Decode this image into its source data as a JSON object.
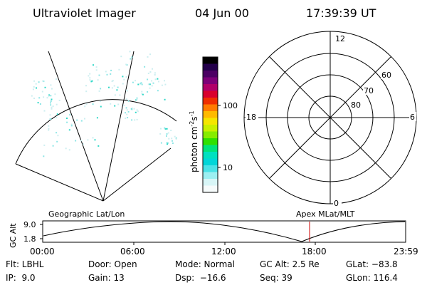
{
  "header": {
    "title": "Ultraviolet Imager",
    "date": "04 Jun 00",
    "time": "17:39:39 UT"
  },
  "colorbar": {
    "label": "photon cm",
    "label_sup1": "-2",
    "label_mid": "s",
    "label_sup2": "-1",
    "ticks": [
      "100",
      "10"
    ],
    "colors": [
      "#000000",
      "#23004a",
      "#4b0063",
      "#7d0078",
      "#b10069",
      "#d9002e",
      "#ef2f00",
      "#ff7b00",
      "#ffba00",
      "#f5e600",
      "#c9f000",
      "#86ec00",
      "#2fe000",
      "#00e37a",
      "#00e0c0",
      "#00d6d8",
      "#4ae2e6",
      "#9ceff1",
      "#d8f6f7",
      "#f6fbfb"
    ]
  },
  "polar": {
    "ring_labels": [
      "80",
      "70",
      "60"
    ],
    "hour_labels": [
      "12",
      "18",
      "6",
      "0"
    ]
  },
  "timeline": {
    "y_axis_label": "GC Alt",
    "y_ticks": [
      "9.0",
      "1.8"
    ],
    "left_label": "Geographic Lat/Lon",
    "right_label": "Apex MLat/MLT",
    "x_ticks": [
      "00:00",
      "06:00",
      "12:00",
      "18:00",
      "23:59"
    ]
  },
  "info": {
    "col1": [
      "Flt: LBHL",
      "IP:  9.0"
    ],
    "col2": [
      "Door: Open",
      "Gain: 13"
    ],
    "col3": [
      "Mode: Normal",
      "Dsp:  −16.6"
    ],
    "col4": [
      "GC Alt: 2.5 Re",
      "Seq: 39"
    ],
    "col5": [
      "GLat: −83.8",
      "GLon: 116.4"
    ]
  }
}
